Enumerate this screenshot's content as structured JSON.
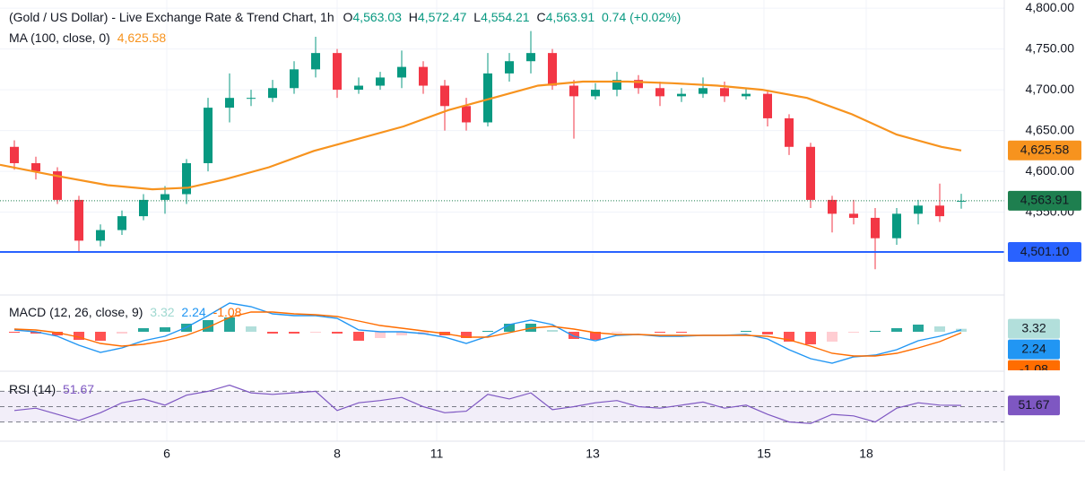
{
  "chart_data": [
    {
      "type": "candlestick",
      "title": "(Gold / US Dollar) - Live Exchange Rate & Trend Chart, 1h",
      "ohlc_legend": [
        {
          "key": "O",
          "label": "4,563.03"
        },
        {
          "key": "H",
          "label": "4,572.47"
        },
        {
          "key": "L",
          "label": "4,554.21"
        },
        {
          "key": "C",
          "label": "4,563.91"
        }
      ],
      "change_label": "0.74 (+0.02%)",
      "up_color": "#089981",
      "down_color": "#f23645",
      "xlim": [
        0,
        280
      ],
      "ylim": [
        4449.5,
        4810
      ],
      "yticks": [
        {
          "value": 4550,
          "label": "4,550.00"
        },
        {
          "value": 4600,
          "label": "4,600.00"
        },
        {
          "value": 4650,
          "label": "4,650.00"
        },
        {
          "value": 4700,
          "label": "4,700.00"
        },
        {
          "value": 4750,
          "label": "4,750.00"
        },
        {
          "value": 4800,
          "label": "4,800.00"
        }
      ],
      "grid": true,
      "x": [
        4,
        10,
        16,
        22,
        28,
        34,
        40,
        46,
        52,
        58,
        64,
        70,
        76,
        82,
        88,
        94,
        100,
        106,
        112,
        118,
        124,
        130,
        136,
        142,
        148,
        154,
        160,
        166,
        172,
        178,
        184,
        190,
        196,
        202,
        208,
        214,
        220,
        226,
        232,
        238,
        244,
        250,
        256,
        262,
        268
      ],
      "open": [
        4630,
        4610,
        4600,
        4565,
        4515,
        4528,
        4545,
        4565,
        4572,
        4610,
        4678,
        4690,
        4690,
        4702,
        4725,
        4745,
        4700,
        4705,
        4715,
        4728,
        4705,
        4680,
        4660,
        4720,
        4735,
        4745,
        4705,
        4692,
        4700,
        4712,
        4702,
        4692,
        4695,
        4702,
        4692,
        4695,
        4665,
        4630,
        4565,
        4548,
        4543,
        4518,
        4548,
        4558,
        4563.03
      ],
      "high": [
        4638,
        4618,
        4605,
        4570,
        4535,
        4552,
        4572,
        4582,
        4615,
        4690,
        4720,
        4700,
        4712,
        4735,
        4765,
        4750,
        4715,
        4722,
        4748,
        4735,
        4712,
        4690,
        4745,
        4745,
        4772,
        4750,
        4712,
        4708,
        4722,
        4718,
        4710,
        4702,
        4715,
        4710,
        4702,
        4700,
        4670,
        4635,
        4570,
        4565,
        4555,
        4555,
        4565,
        4585,
        4572.47
      ],
      "low": [
        4602,
        4590,
        4560,
        4500,
        4508,
        4522,
        4540,
        4548,
        4560,
        4600,
        4660,
        4680,
        4685,
        4695,
        4715,
        4690,
        4695,
        4700,
        4702,
        4695,
        4650,
        4650,
        4655,
        4710,
        4720,
        4700,
        4640,
        4688,
        4692,
        4695,
        4680,
        4685,
        4690,
        4685,
        4688,
        4655,
        4620,
        4555,
        4525,
        4535,
        4480,
        4510,
        4535,
        4538,
        4554.21
      ],
      "close": [
        4610,
        4600,
        4565,
        4515,
        4528,
        4545,
        4565,
        4572,
        4610,
        4678,
        4690,
        4690,
        4702,
        4725,
        4745,
        4700,
        4705,
        4715,
        4728,
        4705,
        4680,
        4660,
        4720,
        4735,
        4745,
        4705,
        4692,
        4700,
        4712,
        4702,
        4692,
        4695,
        4702,
        4692,
        4695,
        4665,
        4630,
        4565,
        4548,
        4543,
        4518,
        4548,
        4558,
        4545,
        4563.91
      ],
      "last_price_label": "4,563.91",
      "last_price_color": "#1e7f4f",
      "ma": {
        "name": "MA (100, close, 0)",
        "color": "#f7931e",
        "value_label": "4,625.58",
        "x": [
          0,
          15,
          30,
          42.5,
          52.5,
          62.5,
          75,
          87.5,
          100,
          112.5,
          125,
          137.5,
          150,
          162.5,
          175,
          187.5,
          200,
          212.5,
          225,
          237.5,
          250,
          262.5,
          268
        ],
        "values": [
          4608,
          4595,
          4583,
          4578,
          4580,
          4590,
          4605,
          4625,
          4640,
          4655,
          4675,
          4690,
          4705,
          4710,
          4710,
          4708,
          4705,
          4700,
          4690,
          4670,
          4645,
          4630,
          4625.58
        ]
      },
      "hline": {
        "value": 4501.1,
        "label": "4,501.10",
        "color": "#2962ff"
      }
    },
    {
      "type": "macd",
      "title": "MACD (12, 26, close, 9)",
      "xlim": [
        0,
        280
      ],
      "ylim": [
        -43,
        40
      ],
      "x": [
        4,
        10,
        16,
        22,
        28,
        34,
        40,
        46,
        52,
        58,
        64,
        70,
        76,
        82,
        88,
        94,
        100,
        106,
        112,
        118,
        124,
        130,
        136,
        142,
        148,
        154,
        160,
        166,
        172,
        178,
        184,
        190,
        196,
        202,
        208,
        214,
        220,
        226,
        232,
        238,
        244,
        250,
        256,
        262,
        268
      ],
      "histogram": {
        "colors": [
          "#26a69a",
          "#b2dfdb",
          "#ffcdd2",
          "#ff5252"
        ],
        "tag_color": "#b2dfdb",
        "values": [
          -1,
          -2,
          -4,
          -9,
          -10,
          -2,
          4,
          5,
          9,
          13,
          16,
          6,
          -2,
          -2,
          -1,
          -2,
          -10,
          -7,
          -4,
          -3,
          -4,
          -7,
          1,
          9,
          9,
          2,
          -8,
          -9,
          -1,
          0,
          -1,
          -1,
          0,
          0,
          1,
          -3,
          -11,
          -14,
          -11,
          -1,
          1,
          4,
          8,
          6,
          3.32
        ]
      },
      "macd": {
        "color": "#2196f3",
        "values": [
          2,
          0,
          -5,
          -15,
          -23,
          -18,
          -10,
          -5,
          5,
          18,
          32,
          28,
          20,
          18,
          18,
          15,
          2,
          0,
          0,
          -2,
          -6,
          -13,
          -5,
          8,
          13,
          8,
          -5,
          -10,
          -4,
          -3,
          -5,
          -5,
          -4,
          -4,
          -3,
          -8,
          -20,
          -30,
          -35,
          -28,
          -26,
          -20,
          -10,
          -5,
          2.24
        ]
      },
      "signal": {
        "color": "#ff6d00",
        "values": [
          3,
          2,
          -1,
          -6,
          -13,
          -16,
          -14,
          -10,
          -4,
          5,
          16,
          22,
          22,
          20,
          19,
          17,
          12,
          7,
          4,
          1,
          -2,
          -6,
          -6,
          -1,
          4,
          6,
          3,
          -1,
          -3,
          -3,
          -4,
          -4,
          -4,
          -4,
          -4,
          -5,
          -9,
          -16,
          -24,
          -27,
          -27,
          -24,
          -18,
          -11,
          -1.08
        ]
      }
    },
    {
      "type": "rsi",
      "title": "RSI (14)",
      "color": "#7e57c2",
      "band_color": "#ede7f6",
      "xlim": [
        0,
        280
      ],
      "ylim": [
        5,
        95
      ],
      "levels": [
        70,
        50,
        30
      ],
      "xticks": [
        {
          "value": 46.5,
          "label": "6"
        },
        {
          "value": 94,
          "label": "8"
        },
        {
          "value": 121.75,
          "label": "11"
        },
        {
          "value": 165.25,
          "label": "13"
        },
        {
          "value": 213,
          "label": "15"
        },
        {
          "value": 241.5,
          "label": "18"
        }
      ],
      "x": [
        4,
        10,
        16,
        22,
        28,
        34,
        40,
        46,
        52,
        58,
        64,
        70,
        76,
        82,
        88,
        94,
        100,
        106,
        112,
        118,
        124,
        130,
        136,
        142,
        148,
        154,
        160,
        166,
        172,
        178,
        184,
        190,
        196,
        202,
        208,
        214,
        220,
        226,
        232,
        238,
        244,
        250,
        256,
        262,
        268
      ],
      "values": [
        45,
        48,
        40,
        32,
        42,
        55,
        60,
        52,
        65,
        70,
        78,
        68,
        66,
        68,
        70,
        45,
        55,
        58,
        62,
        50,
        42,
        44,
        66,
        60,
        68,
        46,
        50,
        55,
        58,
        50,
        48,
        52,
        56,
        48,
        52,
        40,
        30,
        28,
        40,
        38,
        30,
        48,
        55,
        52,
        51.67
      ]
    }
  ]
}
